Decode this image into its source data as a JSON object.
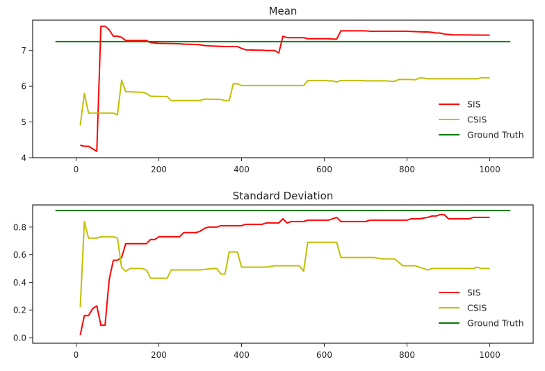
{
  "chart_data": [
    {
      "type": "line",
      "title": "Mean",
      "xlabel": "",
      "ylabel": "",
      "xlim": [
        -105,
        1105
      ],
      "ylim": [
        4.0,
        7.85
      ],
      "xticks": [
        0,
        200,
        400,
        600,
        800,
        1000
      ],
      "yticks": [
        4,
        5,
        6,
        7
      ],
      "grid": false,
      "legend_position": "lower-right",
      "series": [
        {
          "name": "SIS",
          "color": "#ff0000",
          "x": [
            10,
            20,
            30,
            40,
            50,
            60,
            70,
            80,
            90,
            100,
            110,
            120,
            160,
            170,
            180,
            200,
            250,
            260,
            290,
            300,
            310,
            320,
            340,
            360,
            380,
            390,
            400,
            410,
            440,
            450,
            460,
            480,
            490,
            500,
            510,
            540,
            550,
            560,
            600,
            610,
            620,
            630,
            640,
            690,
            700,
            710,
            800,
            820,
            840,
            850,
            860,
            870,
            880,
            890,
            900,
            910,
            1000
          ],
          "y": [
            4.35,
            4.32,
            4.32,
            4.25,
            4.18,
            7.68,
            7.68,
            7.58,
            7.4,
            7.4,
            7.37,
            7.28,
            7.28,
            7.28,
            7.22,
            7.2,
            7.19,
            7.18,
            7.17,
            7.16,
            7.14,
            7.13,
            7.12,
            7.11,
            7.11,
            7.11,
            7.06,
            7.02,
            7.01,
            7.01,
            7.0,
            7.0,
            6.93,
            7.4,
            7.36,
            7.36,
            7.36,
            7.33,
            7.33,
            7.33,
            7.32,
            7.32,
            7.55,
            7.55,
            7.55,
            7.54,
            7.54,
            7.53,
            7.52,
            7.52,
            7.51,
            7.49,
            7.49,
            7.46,
            7.45,
            7.44,
            7.43
          ]
        },
        {
          "name": "CSIS",
          "color": "#bfbf00",
          "x": [
            10,
            20,
            30,
            40,
            50,
            90,
            100,
            110,
            120,
            160,
            170,
            180,
            220,
            230,
            260,
            300,
            310,
            350,
            360,
            370,
            380,
            390,
            400,
            410,
            480,
            500,
            550,
            560,
            600,
            610,
            620,
            630,
            640,
            690,
            700,
            750,
            760,
            770,
            780,
            810,
            820,
            830,
            840,
            850,
            960,
            970,
            980,
            1000
          ],
          "y": [
            4.9,
            5.8,
            5.25,
            5.25,
            5.25,
            5.25,
            5.2,
            6.17,
            5.85,
            5.83,
            5.8,
            5.72,
            5.71,
            5.6,
            5.6,
            5.6,
            5.64,
            5.63,
            5.6,
            5.6,
            6.07,
            6.07,
            6.02,
            6.02,
            6.02,
            6.02,
            6.02,
            6.16,
            6.16,
            6.15,
            6.15,
            6.12,
            6.16,
            6.16,
            6.15,
            6.15,
            6.14,
            6.14,
            6.19,
            6.19,
            6.18,
            6.23,
            6.23,
            6.21,
            6.21,
            6.21,
            6.24,
            6.23
          ]
        },
        {
          "name": "Ground Truth",
          "color": "#008000",
          "x": [
            -50,
            1050
          ],
          "y": [
            7.25,
            7.25
          ]
        }
      ]
    },
    {
      "type": "line",
      "title": "Standard Deviation",
      "xlabel": "",
      "ylabel": "",
      "xlim": [
        -105,
        1105
      ],
      "ylim": [
        -0.04,
        0.96
      ],
      "xticks": [
        0,
        200,
        400,
        600,
        800,
        1000
      ],
      "yticks": [
        0.0,
        0.2,
        0.4,
        0.6,
        0.8
      ],
      "grid": false,
      "legend_position": "lower-right",
      "series": [
        {
          "name": "SIS",
          "color": "#ff0000",
          "x": [
            10,
            20,
            30,
            40,
            50,
            60,
            70,
            80,
            90,
            100,
            110,
            120,
            140,
            150,
            170,
            180,
            190,
            200,
            250,
            260,
            290,
            300,
            310,
            320,
            340,
            350,
            360,
            370,
            380,
            390,
            400,
            410,
            440,
            450,
            460,
            480,
            490,
            500,
            510,
            520,
            540,
            550,
            560,
            590,
            600,
            610,
            620,
            630,
            640,
            690,
            700,
            710,
            790,
            800,
            810,
            830,
            850,
            860,
            870,
            880,
            890,
            900,
            910,
            950,
            960,
            1000
          ],
          "y": [
            0.02,
            0.16,
            0.16,
            0.21,
            0.23,
            0.09,
            0.09,
            0.42,
            0.56,
            0.56,
            0.58,
            0.68,
            0.68,
            0.68,
            0.68,
            0.71,
            0.71,
            0.73,
            0.73,
            0.76,
            0.76,
            0.77,
            0.79,
            0.8,
            0.8,
            0.81,
            0.81,
            0.81,
            0.81,
            0.81,
            0.81,
            0.82,
            0.82,
            0.82,
            0.83,
            0.83,
            0.83,
            0.86,
            0.83,
            0.84,
            0.84,
            0.84,
            0.85,
            0.85,
            0.85,
            0.85,
            0.86,
            0.87,
            0.84,
            0.84,
            0.84,
            0.85,
            0.85,
            0.85,
            0.86,
            0.86,
            0.87,
            0.88,
            0.88,
            0.89,
            0.89,
            0.86,
            0.86,
            0.86,
            0.87,
            0.87
          ]
        },
        {
          "name": "CSIS",
          "color": "#bfbf00",
          "x": [
            10,
            20,
            30,
            40,
            50,
            60,
            70,
            90,
            100,
            110,
            120,
            130,
            150,
            160,
            170,
            180,
            200,
            210,
            220,
            230,
            240,
            300,
            330,
            340,
            350,
            360,
            370,
            380,
            390,
            400,
            410,
            440,
            460,
            480,
            540,
            550,
            560,
            610,
            620,
            630,
            640,
            680,
            690,
            700,
            710,
            720,
            740,
            760,
            770,
            790,
            800,
            810,
            820,
            850,
            860,
            960,
            970,
            980,
            1000
          ],
          "y": [
            0.22,
            0.84,
            0.72,
            0.72,
            0.72,
            0.73,
            0.73,
            0.73,
            0.72,
            0.51,
            0.48,
            0.5,
            0.5,
            0.5,
            0.49,
            0.43,
            0.43,
            0.43,
            0.43,
            0.49,
            0.49,
            0.49,
            0.5,
            0.5,
            0.46,
            0.46,
            0.62,
            0.62,
            0.62,
            0.51,
            0.51,
            0.51,
            0.51,
            0.52,
            0.52,
            0.48,
            0.69,
            0.69,
            0.69,
            0.69,
            0.58,
            0.58,
            0.58,
            0.58,
            0.58,
            0.58,
            0.57,
            0.57,
            0.57,
            0.52,
            0.52,
            0.52,
            0.52,
            0.49,
            0.5,
            0.5,
            0.51,
            0.5,
            0.5
          ]
        },
        {
          "name": "Ground Truth",
          "color": "#008000",
          "x": [
            -50,
            1050
          ],
          "y": [
            0.92,
            0.92
          ]
        }
      ]
    }
  ]
}
